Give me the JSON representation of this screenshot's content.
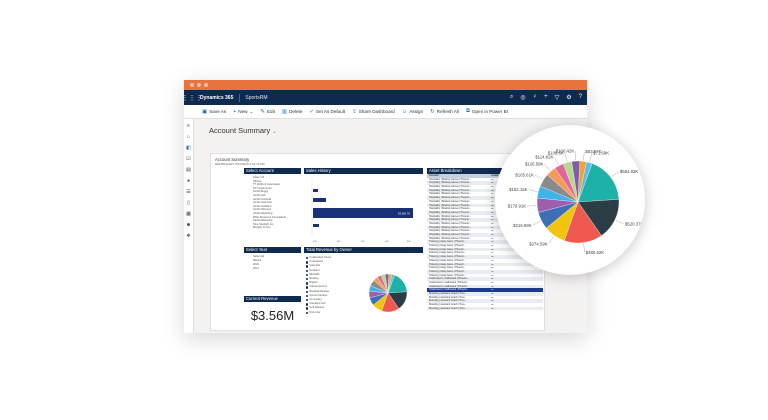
{
  "titlebar": {
    "dots": 3
  },
  "appbar": {
    "app_name": "Dynamics 365",
    "sub_name": "SportsRM",
    "icons": [
      "search-icon",
      "target-icon",
      "lightbulb-icon",
      "plus-icon",
      "filter-icon",
      "gear-icon",
      "help-icon"
    ]
  },
  "commandbar": {
    "items": [
      {
        "label": "Save As",
        "icon": "save-icon"
      },
      {
        "label": "New",
        "icon": "plus-icon"
      },
      {
        "label": "Edit",
        "icon": "pencil-icon"
      },
      {
        "label": "Delete",
        "icon": "trash-icon"
      },
      {
        "label": "Set As Default",
        "icon": "check-icon"
      },
      {
        "label": "Share Dashboard",
        "icon": "share-icon"
      },
      {
        "label": "Assign",
        "icon": "person-icon"
      },
      {
        "label": "Refresh All",
        "icon": "refresh-icon"
      },
      {
        "label": "Open in Power BI",
        "icon": "open-icon"
      }
    ]
  },
  "page": {
    "title": "Account Summary"
  },
  "report": {
    "title": "Account Summary",
    "subtitle": "REFRESHED: 8/12/2020 4:19:74 AM",
    "select_account": {
      "header": "Select Account",
      "items": [
        "Select all",
        "Alberta",
        "TT Wolfe & Associates",
        "TP Investments",
        "Ambit Buggy",
        "Ambit Golf",
        "Ambit Foothold",
        "Ambit Gold Sell",
        "Ambit Outfitters",
        "Ambit Mariners",
        "Ambit Marketing",
        "MMC Business Consultants",
        "Alpha Marketing",
        "Pine Starlight Inc",
        "Morgan Turner"
      ]
    },
    "select_year": {
      "header": "Select Year",
      "items": [
        "Select all",
        "Blanks",
        "2020",
        "2021"
      ]
    },
    "current_revenue": {
      "header": "Current Revenue",
      "value": "$3.56M"
    },
    "sales_history": {
      "header": "Sales History",
      "bar_label": "$3,560.7K"
    },
    "total_revenue": {
      "header": "Total Revenue by Owner",
      "legend": [
        "Unallocated Owner",
        "Unassigned",
        "Katie Rut",
        "Rowland",
        "Mitchelle",
        "Bowling",
        "Bigfoot",
        "Trad Emporium",
        "Baseball Athletes",
        "Sports Fanatics",
        "Ice hockey",
        "Standard Golf",
        "Golf Masters",
        "Rink tutor"
      ]
    },
    "asset_breakdown": {
      "header": "Asset Breakdown",
      "columns": [
        "Account",
        "Actual"
      ],
      "rows": [
        "Hospitality | Bowling Games | Phoenix...",
        "Hospitality | Bowling Games | Phoenix...",
        "Hospitality | Bowling Games | Phoenix...",
        "Hospitality | Bowling Games | Phoenix...",
        "Hospitality | Bowling Games | Phoenix...",
        "Hospitality | Bowling Games | Phoenix...",
        "Hospitality | Bowling Games | Phoenix...",
        "Hospitality | Bowling Games | Phoenix...",
        "Hospitality | Bowling Games | Phoenix...",
        "Hospitality | Bowling Games | Phoenix...",
        "Hospitality | Bowling Games | Phoenix...",
        "Hospitality | Bowling Games | Phoenix...",
        "Hospitality | Bowling Games | Phoenix...",
        "Hospitality | Bowling Games | Phoenix...",
        "Hospitality | Bowling Games | Phoenix...",
        "Hospitality | Bowling Games | Phoenix...",
        "Hospitality | Bowling Games | Phoenix...",
        "Ticketing | Away Game | Phoenix...",
        "Ticketing | Away Game | Phoenix...",
        "Ticketing | Away Game | Phoenix...",
        "Ticketing | Away Game | Phoenix...",
        "Ticketing | Away Game | Phoenix...",
        "Ticketing | Away Game | Phoenix...",
        "Ticketing | Away Game | Phoenix...",
        "Ticketing | Away Game | Phoenix...",
        "Ticketing | Away Game | Phoenix...",
        "Ticketing | Away Game | Phoenix...",
        "Unallocated | Unallocated | Phoenix...",
        "Unallocated | Unallocated | Phoenix...",
        "Unallocated | Unallocated | Phoenix...",
        "Unallocated | Unallocated | Phoenix...",
        "Branding | Assistant Coach | Pres...",
        "Branding | Assistant Coach | Pres...",
        "Branding | Assistant Coach | Pres...",
        "Branding | Assistant Coach | Pres...",
        "Branding | Assistant Coach | Pres..."
      ],
      "selected_row": 30
    }
  },
  "chart_data": {
    "type": "pie",
    "title": "",
    "labels": [
      "$584.83K",
      "$520.37K",
      "$480.62K",
      "$274.59K",
      "$216.98K",
      "$179.91K",
      "$152.15K",
      "$165.61K",
      "$126.58K",
      "$114.82K",
      "$108.6K",
      "$100.42K",
      "$83.07K",
      "$71.68K"
    ],
    "values": [
      584.83,
      520.37,
      480.62,
      274.59,
      216.98,
      179.91,
      152.15,
      165.61,
      126.58,
      114.82,
      108.6,
      100.42,
      83.07,
      71.68
    ],
    "colors": [
      "#1eb1a7",
      "#2b3d45",
      "#ef5a50",
      "#f1c40f",
      "#3d6fb6",
      "#9b5fae",
      "#3fb4e8",
      "#8a8a8a",
      "#f39c5a",
      "#e0679b",
      "#b4d88e",
      "#7f5ea8",
      "#f0a23c",
      "#5fbfe0"
    ]
  }
}
